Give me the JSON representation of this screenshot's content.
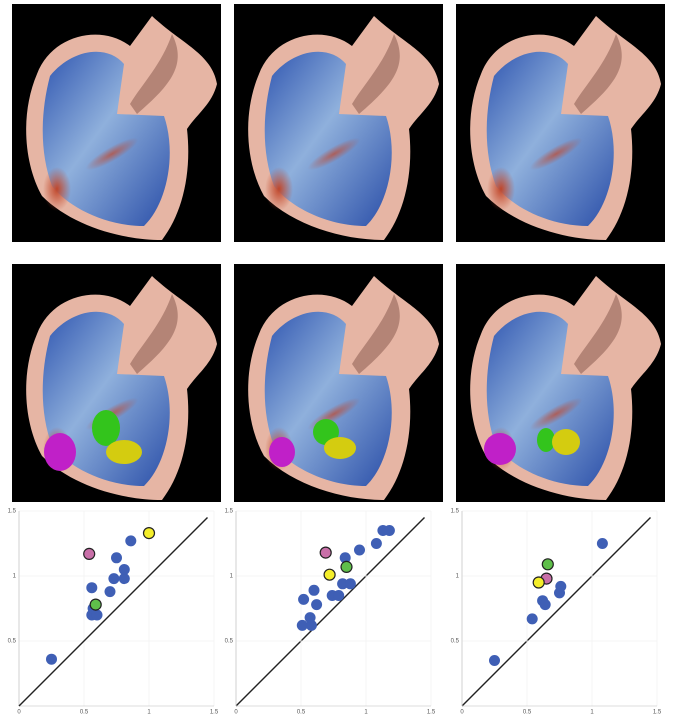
{
  "chart_data": [
    {
      "type": "scatter",
      "xlim": [
        0,
        1.5
      ],
      "ylim": [
        0,
        1.5
      ],
      "xticks": [
        0,
        0.5,
        1,
        1.5
      ],
      "yticks": [
        0.5,
        1,
        1.5
      ],
      "grid": true,
      "series": [
        {
          "color": "#3f5fb5",
          "outline": false,
          "x": [
            0.25,
            0.56,
            0.6,
            0.56,
            0.7,
            0.73,
            0.75,
            0.81,
            0.81,
            0.86,
            0.57
          ],
          "values": [
            0.36,
            0.7,
            0.7,
            0.91,
            0.88,
            0.98,
            1.14,
            0.98,
            1.05,
            1.27,
            0.75
          ]
        },
        {
          "color": "#c86fa8",
          "outline": true,
          "x": [
            0.54
          ],
          "values": [
            1.17
          ]
        },
        {
          "color": "#f4ee2a",
          "outline": true,
          "x": [
            1.0
          ],
          "values": [
            1.33
          ]
        },
        {
          "color": "#5fbf4a",
          "outline": true,
          "x": [
            0.59
          ],
          "values": [
            0.78
          ]
        },
        {
          "color": "#222222",
          "mode": "line",
          "x": [
            0,
            1.45
          ],
          "values": [
            0,
            1.45
          ]
        }
      ]
    },
    {
      "type": "scatter",
      "xlim": [
        0,
        1.5
      ],
      "ylim": [
        0,
        1.5
      ],
      "xticks": [
        0,
        0.5,
        1,
        1.5
      ],
      "yticks": [
        0.5,
        1,
        1.5
      ],
      "grid": true,
      "series": [
        {
          "color": "#3f5fb5",
          "outline": false,
          "x": [
            0.51,
            0.58,
            0.52,
            0.62,
            0.6,
            0.74,
            0.79,
            0.82,
            0.88,
            0.84,
            0.95,
            1.08,
            1.13,
            1.18,
            0.57
          ],
          "values": [
            0.62,
            0.62,
            0.82,
            0.78,
            0.89,
            0.85,
            0.85,
            0.94,
            0.94,
            1.14,
            1.2,
            1.25,
            1.35,
            1.35,
            0.68
          ]
        },
        {
          "color": "#c86fa8",
          "outline": true,
          "x": [
            0.69
          ],
          "values": [
            1.18
          ]
        },
        {
          "color": "#f4ee2a",
          "outline": true,
          "x": [
            0.72
          ],
          "values": [
            1.01
          ]
        },
        {
          "color": "#5fbf4a",
          "outline": true,
          "x": [
            0.85
          ],
          "values": [
            1.07
          ]
        },
        {
          "color": "#222222",
          "mode": "line",
          "x": [
            0,
            1.45
          ],
          "values": [
            0,
            1.45
          ]
        }
      ]
    },
    {
      "type": "scatter",
      "xlim": [
        0,
        1.5
      ],
      "ylim": [
        0,
        1.5
      ],
      "xticks": [
        0,
        0.5,
        1,
        1.5
      ],
      "yticks": [
        0.5,
        1,
        1.5
      ],
      "grid": true,
      "series": [
        {
          "color": "#3f5fb5",
          "outline": false,
          "x": [
            0.25,
            0.54,
            0.62,
            0.64,
            0.75,
            0.76,
            1.08
          ],
          "values": [
            0.35,
            0.67,
            0.81,
            0.78,
            0.87,
            0.92,
            1.25
          ]
        },
        {
          "color": "#c86fa8",
          "outline": true,
          "x": [
            0.65
          ],
          "values": [
            0.98
          ]
        },
        {
          "color": "#f4ee2a",
          "outline": true,
          "x": [
            0.59
          ],
          "values": [
            0.95
          ]
        },
        {
          "color": "#5fbf4a",
          "outline": true,
          "x": [
            0.66
          ],
          "values": [
            1.09
          ]
        },
        {
          "color": "#222222",
          "mode": "line",
          "x": [
            0,
            1.45
          ],
          "values": [
            0,
            1.45
          ]
        }
      ]
    }
  ]
}
